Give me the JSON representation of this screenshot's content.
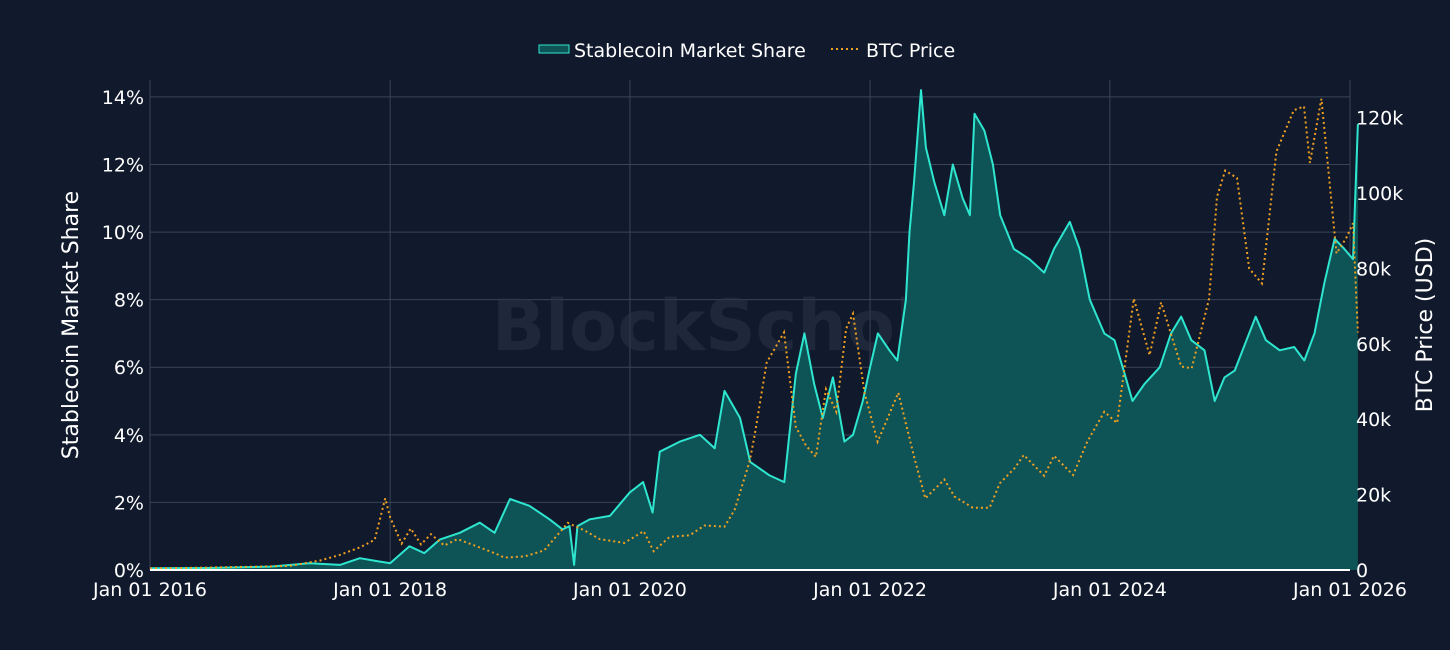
{
  "chart_data": {
    "type": "line",
    "watermark": "BlockScholes",
    "x_range": [
      "2016-01-01",
      "2026-01-01"
    ],
    "x_ticks": [
      {
        "date": "2016-01-01",
        "label": "Jan 01 2016"
      },
      {
        "date": "2018-01-01",
        "label": "Jan 01 2018"
      },
      {
        "date": "2020-01-01",
        "label": "Jan 01 2020"
      },
      {
        "date": "2022-01-01",
        "label": "Jan 01 2022"
      },
      {
        "date": "2024-01-01",
        "label": "Jan 01 2024"
      },
      {
        "date": "2026-01-01",
        "label": "Jan 01 2026"
      }
    ],
    "y_left": {
      "label": "Stablecoin Market Share",
      "range": [
        0,
        14.5
      ],
      "ticks": [
        {
          "value": 0,
          "label": "0%"
        },
        {
          "value": 2,
          "label": "2%"
        },
        {
          "value": 4,
          "label": "4%"
        },
        {
          "value": 6,
          "label": "6%"
        },
        {
          "value": 8,
          "label": "8%"
        },
        {
          "value": 10,
          "label": "10%"
        },
        {
          "value": 12,
          "label": "12%"
        },
        {
          "value": 14,
          "label": "14%"
        }
      ]
    },
    "y_right": {
      "label": "BTC Price (USD)",
      "range": [
        0,
        130000
      ],
      "ticks": [
        {
          "value": 0,
          "label": "0"
        },
        {
          "value": 20000,
          "label": "20k"
        },
        {
          "value": 40000,
          "label": "40k"
        },
        {
          "value": 60000,
          "label": "60k"
        },
        {
          "value": 80000,
          "label": "80k"
        },
        {
          "value": 100000,
          "label": "100k"
        },
        {
          "value": 120000,
          "label": "120k"
        }
      ]
    },
    "grid": true,
    "legend_position": "top-center",
    "series": [
      {
        "name": "Stablecoin Market Share",
        "axis": "left",
        "style": "solid-area",
        "color": "#2ee6cf",
        "fill": "#0e5355",
        "points": [
          [
            "2016-01-01",
            0.05
          ],
          [
            "2016-07-01",
            0.06
          ],
          [
            "2017-01-01",
            0.1
          ],
          [
            "2017-05-01",
            0.2
          ],
          [
            "2017-08-01",
            0.15
          ],
          [
            "2017-10-01",
            0.35
          ],
          [
            "2017-12-01",
            0.25
          ],
          [
            "2018-01-01",
            0.2
          ],
          [
            "2018-03-01",
            0.7
          ],
          [
            "2018-04-15",
            0.5
          ],
          [
            "2018-06-01",
            0.9
          ],
          [
            "2018-08-01",
            1.1
          ],
          [
            "2018-10-01",
            1.4
          ],
          [
            "2018-11-15",
            1.1
          ],
          [
            "2019-01-01",
            2.1
          ],
          [
            "2019-03-01",
            1.9
          ],
          [
            "2019-05-01",
            1.5
          ],
          [
            "2019-06-10",
            1.2
          ],
          [
            "2019-07-01",
            1.3
          ],
          [
            "2019-07-15",
            0.15
          ],
          [
            "2019-07-25",
            1.3
          ],
          [
            "2019-09-01",
            1.5
          ],
          [
            "2019-11-01",
            1.6
          ],
          [
            "2020-01-01",
            2.3
          ],
          [
            "2020-02-10",
            2.6
          ],
          [
            "2020-03-10",
            1.7
          ],
          [
            "2020-04-01",
            3.5
          ],
          [
            "2020-06-01",
            3.8
          ],
          [
            "2020-08-01",
            4.0
          ],
          [
            "2020-09-15",
            3.6
          ],
          [
            "2020-10-15",
            5.3
          ],
          [
            "2020-12-01",
            4.5
          ],
          [
            "2021-01-01",
            3.2
          ],
          [
            "2021-03-01",
            2.8
          ],
          [
            "2021-04-15",
            2.6
          ],
          [
            "2021-05-20",
            5.8
          ],
          [
            "2021-06-15",
            7.0
          ],
          [
            "2021-07-15",
            5.5
          ],
          [
            "2021-08-10",
            4.5
          ],
          [
            "2021-09-10",
            5.7
          ],
          [
            "2021-10-15",
            3.8
          ],
          [
            "2021-11-10",
            4.0
          ],
          [
            "2021-12-10",
            5.0
          ],
          [
            "2022-01-01",
            6.0
          ],
          [
            "2022-01-25",
            7.0
          ],
          [
            "2022-03-01",
            6.5
          ],
          [
            "2022-03-25",
            6.2
          ],
          [
            "2022-04-20",
            8.0
          ],
          [
            "2022-05-01",
            10.0
          ],
          [
            "2022-05-15",
            11.5
          ],
          [
            "2022-06-05",
            14.2
          ],
          [
            "2022-06-20",
            12.5
          ],
          [
            "2022-07-15",
            11.5
          ],
          [
            "2022-08-15",
            10.5
          ],
          [
            "2022-09-10",
            12.0
          ],
          [
            "2022-10-10",
            11.0
          ],
          [
            "2022-11-01",
            10.5
          ],
          [
            "2022-11-15",
            13.5
          ],
          [
            "2022-12-15",
            13.0
          ],
          [
            "2023-01-10",
            12.0
          ],
          [
            "2023-02-01",
            10.5
          ],
          [
            "2023-03-15",
            9.5
          ],
          [
            "2023-05-01",
            9.2
          ],
          [
            "2023-06-15",
            8.8
          ],
          [
            "2023-07-15",
            9.5
          ],
          [
            "2023-09-01",
            10.3
          ],
          [
            "2023-10-01",
            9.5
          ],
          [
            "2023-11-01",
            8.0
          ],
          [
            "2023-12-15",
            7.0
          ],
          [
            "2024-01-15",
            6.8
          ],
          [
            "2024-02-15",
            5.8
          ],
          [
            "2024-03-10",
            5.0
          ],
          [
            "2024-04-15",
            5.5
          ],
          [
            "2024-06-01",
            6.0
          ],
          [
            "2024-07-05",
            7.0
          ],
          [
            "2024-08-05",
            7.5
          ],
          [
            "2024-09-05",
            6.8
          ],
          [
            "2024-10-15",
            6.5
          ],
          [
            "2024-11-15",
            5.0
          ],
          [
            "2024-12-15",
            5.7
          ],
          [
            "2025-01-15",
            5.9
          ],
          [
            "2025-02-20",
            6.8
          ],
          [
            "2025-03-20",
            7.5
          ],
          [
            "2025-04-20",
            6.8
          ],
          [
            "2025-06-01",
            6.5
          ],
          [
            "2025-07-15",
            6.6
          ],
          [
            "2025-08-15",
            6.2
          ],
          [
            "2025-09-15",
            7.0
          ],
          [
            "2025-10-15",
            8.5
          ],
          [
            "2025-11-15",
            9.8
          ],
          [
            "2025-12-15",
            9.5
          ],
          [
            "2026-01-10",
            9.2
          ],
          [
            "2026-01-25",
            13.2
          ]
        ]
      },
      {
        "name": "BTC Price",
        "axis": "right",
        "style": "dotted",
        "color": "#f0a020",
        "points": [
          [
            "2016-01-01",
            430
          ],
          [
            "2016-06-01",
            600
          ],
          [
            "2016-12-01",
            900
          ],
          [
            "2017-03-01",
            1100
          ],
          [
            "2017-06-01",
            2500
          ],
          [
            "2017-08-01",
            4000
          ],
          [
            "2017-10-01",
            6000
          ],
          [
            "2017-11-15",
            8000
          ],
          [
            "2017-12-17",
            19000
          ],
          [
            "2018-01-01",
            14000
          ],
          [
            "2018-02-05",
            7000
          ],
          [
            "2018-03-05",
            11000
          ],
          [
            "2018-04-05",
            6800
          ],
          [
            "2018-05-05",
            9500
          ],
          [
            "2018-06-15",
            6500
          ],
          [
            "2018-07-25",
            8200
          ],
          [
            "2018-09-15",
            6500
          ],
          [
            "2018-11-20",
            4300
          ],
          [
            "2018-12-15",
            3300
          ],
          [
            "2019-02-15",
            3600
          ],
          [
            "2019-04-15",
            5200
          ],
          [
            "2019-06-26",
            12500
          ],
          [
            "2019-08-15",
            10500
          ],
          [
            "2019-10-01",
            8200
          ],
          [
            "2019-12-15",
            7200
          ],
          [
            "2020-02-12",
            10300
          ],
          [
            "2020-03-13",
            5000
          ],
          [
            "2020-05-01",
            8800
          ],
          [
            "2020-07-01",
            9200
          ],
          [
            "2020-08-15",
            11800
          ],
          [
            "2020-10-15",
            11500
          ],
          [
            "2020-11-15",
            16000
          ],
          [
            "2020-12-31",
            29000
          ],
          [
            "2021-01-15",
            36000
          ],
          [
            "2021-02-20",
            55000
          ],
          [
            "2021-04-14",
            63000
          ],
          [
            "2021-05-20",
            38000
          ],
          [
            "2021-06-20",
            33000
          ],
          [
            "2021-07-20",
            30000
          ],
          [
            "2021-08-20",
            48000
          ],
          [
            "2021-09-20",
            42000
          ],
          [
            "2021-10-20",
            64000
          ],
          [
            "2021-11-10",
            68000
          ],
          [
            "2021-12-15",
            47000
          ],
          [
            "2022-01-24",
            34000
          ],
          [
            "2022-03-28",
            47000
          ],
          [
            "2022-05-15",
            30000
          ],
          [
            "2022-06-18",
            19000
          ],
          [
            "2022-08-15",
            24000
          ],
          [
            "2022-09-15",
            19500
          ],
          [
            "2022-11-10",
            16500
          ],
          [
            "2022-12-31",
            16500
          ],
          [
            "2023-01-31",
            23000
          ],
          [
            "2023-03-17",
            27000
          ],
          [
            "2023-04-14",
            30500
          ],
          [
            "2023-06-15",
            25000
          ],
          [
            "2023-07-15",
            30300
          ],
          [
            "2023-09-11",
            25200
          ],
          [
            "2023-10-24",
            34000
          ],
          [
            "2023-12-15",
            42000
          ],
          [
            "2024-01-23",
            39000
          ],
          [
            "2024-03-14",
            72000
          ],
          [
            "2024-05-01",
            57000
          ],
          [
            "2024-06-05",
            71000
          ],
          [
            "2024-08-05",
            54000
          ],
          [
            "2024-09-06",
            53500
          ],
          [
            "2024-10-29",
            72000
          ],
          [
            "2024-11-22",
            99000
          ],
          [
            "2024-12-17",
            106000
          ],
          [
            "2025-01-22",
            104000
          ],
          [
            "2025-02-28",
            80000
          ],
          [
            "2025-04-08",
            76000
          ],
          [
            "2025-05-22",
            111000
          ],
          [
            "2025-07-14",
            122000
          ],
          [
            "2025-08-14",
            123000
          ],
          [
            "2025-09-01",
            108000
          ],
          [
            "2025-10-06",
            125000
          ],
          [
            "2025-11-21",
            84000
          ],
          [
            "2025-12-20",
            88000
          ],
          [
            "2026-01-10",
            92000
          ],
          [
            "2026-01-25",
            63000
          ]
        ]
      }
    ]
  }
}
